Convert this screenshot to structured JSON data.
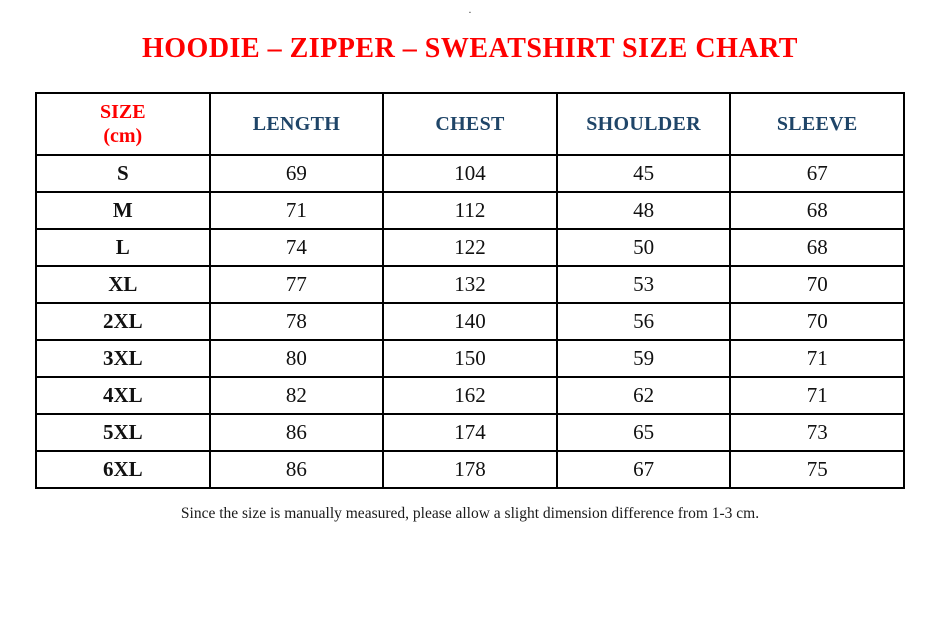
{
  "page": {
    "top_mark": "."
  },
  "title": "HOODIE – ZIPPER – SWEATSHIRT SIZE CHART",
  "table": {
    "header": {
      "size_label": "SIZE",
      "size_unit": "(cm)",
      "columns": [
        "LENGTH",
        "CHEST",
        "SHOULDER",
        "SLEEVE"
      ]
    },
    "rows": [
      {
        "size": "S",
        "length": "69",
        "chest": "104",
        "shoulder": "45",
        "sleeve": "67"
      },
      {
        "size": "M",
        "length": "71",
        "chest": "112",
        "shoulder": "48",
        "sleeve": "68"
      },
      {
        "size": "L",
        "length": "74",
        "chest": "122",
        "shoulder": "50",
        "sleeve": "68"
      },
      {
        "size": "XL",
        "length": "77",
        "chest": "132",
        "shoulder": "53",
        "sleeve": "70"
      },
      {
        "size": "2XL",
        "length": "78",
        "chest": "140",
        "shoulder": "56",
        "sleeve": "70"
      },
      {
        "size": "3XL",
        "length": "80",
        "chest": "150",
        "shoulder": "59",
        "sleeve": "71"
      },
      {
        "size": "4XL",
        "length": "82",
        "chest": "162",
        "shoulder": "62",
        "sleeve": "71"
      },
      {
        "size": "5XL",
        "length": "86",
        "chest": "174",
        "shoulder": "65",
        "sleeve": "73"
      },
      {
        "size": "6XL",
        "length": "86",
        "chest": "178",
        "shoulder": "67",
        "sleeve": "75"
      }
    ]
  },
  "footer": {
    "note": "Since the size is manually measured, please allow a slight dimension difference from 1-3 cm."
  },
  "colors": {
    "title_red": "#fe0000",
    "header_blue": "#1f4568",
    "text_black": "#111111",
    "border_black": "#000000"
  }
}
